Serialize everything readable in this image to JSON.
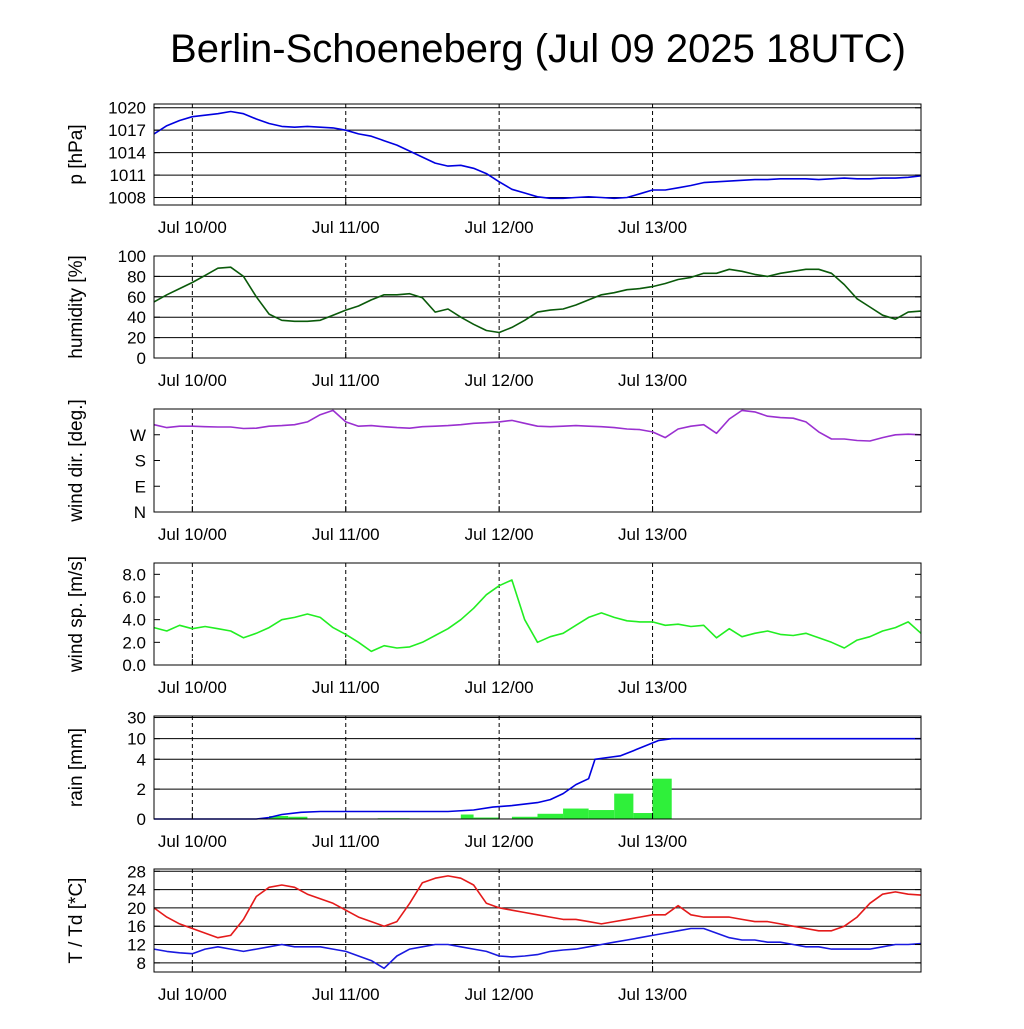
{
  "title": "Berlin-Schoeneberg (Jul 09 2025 18UTC)",
  "chart_data": [
    {
      "type": "line",
      "ylabel": "p [hPa]",
      "x_tick_labels": [
        "Jul 10/00",
        "Jul 11/00",
        "Jul 12/00",
        "Jul 13/00"
      ],
      "x_range_hours": [
        -6,
        114
      ],
      "y_ticks": [
        1008,
        1011,
        1014,
        1017,
        1020
      ],
      "ylim": [
        1007,
        1020.5
      ],
      "grid": true,
      "series": [
        {
          "color": "#0000e0",
          "x": [
            -6,
            -4,
            -2,
            0,
            2,
            4,
            6,
            8,
            10,
            12,
            14,
            16,
            18,
            20,
            22,
            24,
            26,
            28,
            30,
            32,
            34,
            36,
            38,
            40,
            42,
            44,
            46,
            48,
            50,
            52,
            54,
            56,
            58,
            60,
            62,
            64,
            66,
            68,
            70,
            72,
            74,
            76,
            78,
            80,
            82,
            84,
            86,
            88,
            90,
            92,
            94,
            96,
            98,
            100,
            102,
            104,
            106,
            108,
            110,
            112,
            114
          ],
          "values": [
            1016.5,
            1017.6,
            1018.3,
            1018.8,
            1019.0,
            1019.2,
            1019.5,
            1019.2,
            1018.5,
            1017.9,
            1017.5,
            1017.4,
            1017.5,
            1017.4,
            1017.3,
            1017.0,
            1016.5,
            1016.2,
            1015.6,
            1015.0,
            1014.2,
            1013.4,
            1012.6,
            1012.2,
            1012.3,
            1011.9,
            1011.2,
            1010.1,
            1009.1,
            1008.6,
            1008.1,
            1007.9,
            1007.9,
            1008.0,
            1008.1,
            1008.0,
            1007.9,
            1008.0,
            1008.5,
            1009.0,
            1009.0,
            1009.3,
            1009.6,
            1010.0,
            1010.1,
            1010.2,
            1010.3,
            1010.4,
            1010.4,
            1010.5,
            1010.5,
            1010.5,
            1010.4,
            1010.5,
            1010.6,
            1010.5,
            1010.5,
            1010.6,
            1010.6,
            1010.7,
            1010.9
          ]
        }
      ]
    },
    {
      "type": "line",
      "ylabel": "humidity [%]",
      "x_tick_labels": [
        "Jul 10/00",
        "Jul 11/00",
        "Jul 12/00",
        "Jul 13/00"
      ],
      "x_range_hours": [
        -6,
        114
      ],
      "y_ticks": [
        0,
        20,
        40,
        60,
        80,
        100
      ],
      "ylim": [
        0,
        100
      ],
      "grid": true,
      "series": [
        {
          "color": "#0a5a0a",
          "x": [
            -6,
            -4,
            -2,
            0,
            2,
            4,
            6,
            8,
            10,
            12,
            14,
            16,
            18,
            20,
            22,
            24,
            26,
            28,
            30,
            32,
            34,
            36,
            38,
            40,
            42,
            44,
            46,
            48,
            50,
            52,
            54,
            56,
            58,
            60,
            62,
            64,
            66,
            68,
            70,
            72,
            74,
            76,
            78,
            80,
            82,
            84,
            86,
            88,
            90,
            92,
            94,
            96,
            98,
            100,
            102,
            104,
            106,
            108,
            110,
            112,
            114
          ],
          "values": [
            55,
            62,
            68,
            74,
            81,
            88,
            89,
            80,
            60,
            43,
            37,
            36,
            36,
            37,
            42,
            47,
            51,
            57,
            62,
            62,
            63,
            59,
            45,
            48,
            40,
            33,
            27,
            25,
            30,
            37,
            45,
            47,
            48,
            52,
            57,
            62,
            64,
            67,
            68,
            70,
            73,
            77,
            79,
            83,
            83,
            87,
            85,
            82,
            80,
            83,
            85,
            87,
            87,
            83,
            72,
            58,
            50,
            42,
            38,
            45,
            46
          ]
        }
      ]
    },
    {
      "type": "line",
      "ylabel": "wind dir. [deg.]",
      "x_tick_labels": [
        "Jul 10/00",
        "Jul 11/00",
        "Jul 12/00",
        "Jul 13/00"
      ],
      "x_range_hours": [
        -6,
        114
      ],
      "y_tick_labels": [
        "N",
        "E",
        "S",
        "W"
      ],
      "y_ticks": [
        0,
        90,
        180,
        270
      ],
      "ylim": [
        0,
        360
      ],
      "grid": false,
      "series": [
        {
          "color": "#9a30d0",
          "x": [
            -6,
            -4,
            -2,
            0,
            2,
            4,
            6,
            8,
            10,
            12,
            14,
            16,
            18,
            20,
            22,
            24,
            26,
            28,
            30,
            32,
            34,
            36,
            38,
            40,
            42,
            44,
            46,
            48,
            50,
            52,
            54,
            56,
            58,
            60,
            62,
            64,
            66,
            68,
            70,
            72,
            74,
            76,
            78,
            80,
            82,
            84,
            86,
            88,
            90,
            92,
            94,
            96,
            98,
            100,
            102,
            104,
            106,
            108,
            110,
            112,
            114
          ],
          "values": [
            305,
            295,
            300,
            300,
            298,
            297,
            297,
            292,
            293,
            300,
            302,
            305,
            315,
            340,
            355,
            315,
            300,
            302,
            298,
            295,
            293,
            298,
            300,
            302,
            305,
            310,
            312,
            315,
            320,
            310,
            300,
            298,
            300,
            302,
            300,
            298,
            295,
            290,
            288,
            280,
            260,
            290,
            300,
            305,
            275,
            325,
            355,
            350,
            335,
            330,
            328,
            315,
            280,
            255,
            255,
            250,
            248,
            260,
            270,
            272,
            270
          ]
        }
      ]
    },
    {
      "type": "line",
      "ylabel": "wind sp. [m/s]",
      "x_tick_labels": [
        "Jul 10/00",
        "Jul 11/00",
        "Jul 12/00",
        "Jul 13/00"
      ],
      "x_range_hours": [
        -6,
        114
      ],
      "y_ticks": [
        0.0,
        2.0,
        4.0,
        6.0,
        8.0
      ],
      "y_tick_labels": [
        "0.0",
        "2.0",
        "4.0",
        "6.0",
        "8.0"
      ],
      "ylim": [
        0,
        9
      ],
      "grid": false,
      "series": [
        {
          "color": "#22ee22",
          "x": [
            -6,
            -4,
            -2,
            0,
            2,
            4,
            6,
            8,
            10,
            12,
            14,
            16,
            18,
            20,
            22,
            24,
            26,
            28,
            30,
            32,
            34,
            36,
            38,
            40,
            42,
            44,
            46,
            48,
            50,
            52,
            54,
            56,
            58,
            60,
            62,
            64,
            66,
            68,
            70,
            72,
            74,
            76,
            78,
            80,
            82,
            84,
            86,
            88,
            90,
            92,
            94,
            96,
            98,
            100,
            102,
            104,
            106,
            108,
            110,
            112,
            114
          ],
          "values": [
            3.3,
            3.0,
            3.5,
            3.2,
            3.4,
            3.2,
            3.0,
            2.4,
            2.8,
            3.3,
            4.0,
            4.2,
            4.5,
            4.2,
            3.3,
            2.7,
            2.0,
            1.2,
            1.7,
            1.5,
            1.6,
            2.0,
            2.6,
            3.2,
            4.0,
            5.0,
            6.2,
            7.0,
            7.5,
            4.0,
            2.0,
            2.5,
            2.8,
            3.5,
            4.2,
            4.6,
            4.2,
            3.9,
            3.8,
            3.8,
            3.5,
            3.6,
            3.4,
            3.5,
            2.4,
            3.2,
            2.5,
            2.8,
            3.0,
            2.7,
            2.6,
            2.8,
            2.4,
            2.0,
            1.5,
            2.2,
            2.5,
            3.0,
            3.3,
            3.8,
            2.8
          ]
        }
      ]
    },
    {
      "type": "bar",
      "ylabel": "rain [mm]",
      "x_tick_labels": [
        "Jul 10/00",
        "Jul 11/00",
        "Jul 12/00",
        "Jul 13/00"
      ],
      "x_range_hours": [
        -6,
        114
      ],
      "y_ticks": [
        0,
        2,
        4,
        10,
        30
      ],
      "y_tick_labels": [
        "0",
        "2",
        "4",
        "10",
        "30"
      ],
      "y_scale": "nonlinear",
      "grid": true,
      "bars": {
        "color": "#2ff03a",
        "start_hours": [
          12,
          15,
          23,
          29,
          38,
          42,
          44,
          50,
          54,
          58,
          62,
          66,
          69,
          72
        ],
        "end_hours": [
          15,
          18,
          26,
          34,
          40,
          44,
          48,
          54,
          58,
          62,
          66,
          69,
          72,
          75
        ],
        "values": [
          0.2,
          0.15,
          0.02,
          0.05,
          0.02,
          0.3,
          0.1,
          0.15,
          0.35,
          0.7,
          0.6,
          1.7,
          0.4,
          2.7
        ]
      },
      "series": [
        {
          "name": "",
          "color": "#0000e0",
          "type": "line",
          "x": [
            -6,
            10,
            12,
            14,
            17,
            20,
            24,
            30,
            40,
            44,
            47,
            50,
            52,
            54,
            56,
            58,
            60,
            62,
            63,
            65,
            67,
            69,
            71,
            73,
            75,
            80,
            90,
            100,
            114
          ],
          "values": [
            0,
            0,
            0.1,
            0.3,
            0.45,
            0.5,
            0.5,
            0.5,
            0.5,
            0.6,
            0.8,
            0.9,
            1.0,
            1.1,
            1.3,
            1.7,
            2.3,
            2.7,
            4.0,
            4.5,
            5.0,
            6.5,
            8.0,
            9.5,
            10.0,
            10.0,
            10.0,
            10.0,
            10.0
          ]
        }
      ]
    },
    {
      "type": "line",
      "ylabel": "T / Td [*C]",
      "x_tick_labels": [
        "Jul 10/00",
        "Jul 11/00",
        "Jul 12/00",
        "Jul 13/00"
      ],
      "x_range_hours": [
        -6,
        114
      ],
      "y_ticks": [
        8,
        12,
        16,
        20,
        24,
        28
      ],
      "ylim": [
        6,
        28.5
      ],
      "grid": true,
      "series": [
        {
          "color": "#e41a1a",
          "x": [
            -6,
            -4,
            -2,
            0,
            2,
            4,
            6,
            8,
            10,
            12,
            14,
            16,
            18,
            20,
            22,
            24,
            26,
            28,
            30,
            32,
            34,
            36,
            38,
            40,
            42,
            44,
            46,
            48,
            50,
            52,
            54,
            56,
            58,
            60,
            62,
            64,
            66,
            68,
            70,
            72,
            74,
            76,
            78,
            80,
            82,
            84,
            86,
            88,
            90,
            92,
            94,
            96,
            98,
            100,
            102,
            104,
            106,
            108,
            110,
            112,
            114
          ],
          "values": [
            20.0,
            18.0,
            16.5,
            15.5,
            14.5,
            13.5,
            14.0,
            17.5,
            22.5,
            24.5,
            25.0,
            24.5,
            23.0,
            22.0,
            21.0,
            19.5,
            18.0,
            17.0,
            16.0,
            17.0,
            21.0,
            25.5,
            26.5,
            27.0,
            26.5,
            25.0,
            21.0,
            20.0,
            19.5,
            19.0,
            18.5,
            18.0,
            17.5,
            17.5,
            17.0,
            16.5,
            17.0,
            17.5,
            18.0,
            18.5,
            18.5,
            20.5,
            18.5,
            18.0,
            18.0,
            18.0,
            17.5,
            17.0,
            17.0,
            16.5,
            16.0,
            15.5,
            15.0,
            15.0,
            16.0,
            18.0,
            21.0,
            23.0,
            23.5,
            23.0,
            22.8
          ]
        },
        {
          "color": "#1a1ae0",
          "x": [
            -6,
            -4,
            -2,
            0,
            2,
            4,
            6,
            8,
            10,
            12,
            14,
            16,
            18,
            20,
            22,
            24,
            26,
            28,
            30,
            32,
            34,
            36,
            38,
            40,
            42,
            44,
            46,
            48,
            50,
            52,
            54,
            56,
            58,
            60,
            62,
            64,
            66,
            68,
            70,
            72,
            74,
            76,
            78,
            80,
            82,
            84,
            86,
            88,
            90,
            92,
            94,
            96,
            98,
            100,
            102,
            104,
            106,
            108,
            110,
            112,
            114
          ],
          "values": [
            11.0,
            10.5,
            10.2,
            10.0,
            11.0,
            11.5,
            11.0,
            10.5,
            11.0,
            11.5,
            12.0,
            11.5,
            11.5,
            11.5,
            11.0,
            10.5,
            9.5,
            8.5,
            6.8,
            9.5,
            11.0,
            11.5,
            12.0,
            12.0,
            11.5,
            11.0,
            10.5,
            9.5,
            9.3,
            9.5,
            9.8,
            10.5,
            10.8,
            11.0,
            11.5,
            12.0,
            12.5,
            13.0,
            13.5,
            14.0,
            14.5,
            15.0,
            15.5,
            15.5,
            14.5,
            13.5,
            13.0,
            13.0,
            12.5,
            12.5,
            12.0,
            11.5,
            11.5,
            11.0,
            11.0,
            11.0,
            11.0,
            11.5,
            12.0,
            12.0,
            12.2
          ]
        }
      ]
    }
  ]
}
